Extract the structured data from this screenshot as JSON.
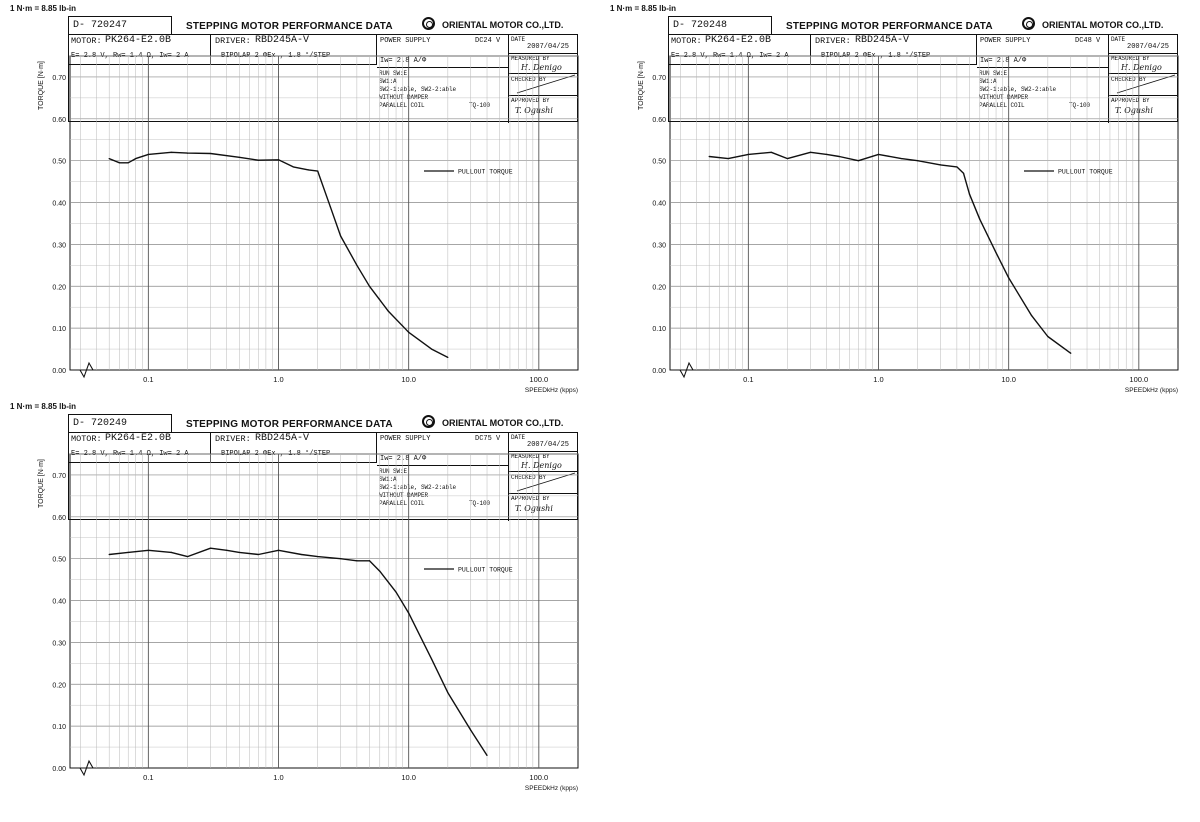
{
  "conversion_note": "1 N·m = 8.85 lb-in",
  "sheet": {
    "title": "STEPPING MOTOR PERFORMANCE DATA",
    "company": "ORIENTAL MOTOR CO.,LTD.",
    "motor_label": "MOTOR:",
    "motor": "PK264-E2.0B",
    "driver_label": "DRIVER:",
    "driver": "RBD245A-V",
    "electrical": "E= 2.8 V, Rw= 1.4  Ω, Iw= 2   A",
    "drive_mode": "BIPOLAR   2 ΦEx  ,    1.8 °/STEP",
    "power_supply_label": "POWER SUPPLY",
    "current": "Iw= 2.8  A/Φ",
    "settings": [
      "RUN SW:E",
      "SW1:A",
      "SW2-1:able, SW2-2:able",
      "WITHOUT DAMPER"
    ],
    "coil": "PARALLEL COIL",
    "tq": "TQ-100",
    "date_label": "DATE",
    "date": "2007/04/25",
    "measured_by_label": "MEASURED BY",
    "measured_sig": "H. Denigo",
    "checked_by_label": "CHECKED BY",
    "approved_by_label": "APPROVED BY",
    "approved_sig": "T. Ogushi",
    "legend": "PULLOUT  TORQUE"
  },
  "chart_data": [
    {
      "type": "line",
      "doc_id": "D- 720247",
      "supply_voltage": "DC24 V",
      "xlabel": "SPEEDkHz (kpps)",
      "ylabel": "TORQUE [N·m]",
      "x_scale": "log",
      "xlim": [
        0.025,
        200
      ],
      "ylim": [
        0,
        0.75
      ],
      "xticks": [
        "0.1",
        "1.0",
        "10.0",
        "100.0"
      ],
      "yticks": [
        "0.00",
        "0.10",
        "0.20",
        "0.30",
        "0.40",
        "0.50",
        "0.60",
        "0.70"
      ],
      "grid": true,
      "legend_position": "top-right",
      "series": [
        {
          "name": "PULLOUT  TORQUE",
          "x": [
            0.05,
            0.06,
            0.07,
            0.08,
            0.1,
            0.15,
            0.2,
            0.3,
            0.5,
            0.7,
            1.0,
            1.3,
            1.7,
            2.0,
            2.5,
            3.0,
            4.0,
            5.0,
            7.0,
            10.0,
            15.0,
            20.0
          ],
          "y": [
            0.505,
            0.495,
            0.495,
            0.505,
            0.515,
            0.52,
            0.518,
            0.517,
            0.508,
            0.501,
            0.502,
            0.485,
            0.478,
            0.475,
            0.39,
            0.32,
            0.25,
            0.2,
            0.14,
            0.09,
            0.05,
            0.03
          ]
        }
      ]
    },
    {
      "type": "line",
      "doc_id": "D- 720248",
      "supply_voltage": "DC48 V",
      "xlabel": "SPEEDkHz (kpps)",
      "ylabel": "TORQUE [N·m]",
      "x_scale": "log",
      "xlim": [
        0.025,
        200
      ],
      "ylim": [
        0,
        0.75
      ],
      "xticks": [
        "0.1",
        "1.0",
        "10.0",
        "100.0"
      ],
      "yticks": [
        "0.00",
        "0.10",
        "0.20",
        "0.30",
        "0.40",
        "0.50",
        "0.60",
        "0.70"
      ],
      "grid": true,
      "legend_position": "top-right",
      "series": [
        {
          "name": "PULLOUT  TORQUE",
          "x": [
            0.05,
            0.07,
            0.1,
            0.15,
            0.2,
            0.3,
            0.4,
            0.5,
            0.7,
            1.0,
            1.5,
            2.0,
            3.0,
            4.0,
            4.5,
            5.0,
            6.0,
            8.0,
            10.0,
            15.0,
            20.0,
            30.0
          ],
          "y": [
            0.51,
            0.505,
            0.515,
            0.52,
            0.505,
            0.52,
            0.515,
            0.51,
            0.5,
            0.515,
            0.505,
            0.5,
            0.49,
            0.485,
            0.47,
            0.42,
            0.36,
            0.28,
            0.22,
            0.13,
            0.08,
            0.04
          ]
        }
      ]
    },
    {
      "type": "line",
      "doc_id": "D- 720249",
      "supply_voltage": "DC75 V",
      "xlabel": "SPEEDkHz (kpps)",
      "ylabel": "TORQUE [N·m]",
      "x_scale": "log",
      "xlim": [
        0.025,
        200
      ],
      "ylim": [
        0,
        0.75
      ],
      "xticks": [
        "0.1",
        "1.0",
        "10.0",
        "100.0"
      ],
      "yticks": [
        "0.00",
        "0.10",
        "0.20",
        "0.30",
        "0.40",
        "0.50",
        "0.60",
        "0.70"
      ],
      "grid": true,
      "legend_position": "top-right",
      "series": [
        {
          "name": "PULLOUT  TORQUE",
          "x": [
            0.05,
            0.07,
            0.1,
            0.15,
            0.2,
            0.3,
            0.4,
            0.5,
            0.7,
            1.0,
            1.5,
            2.0,
            3.0,
            4.0,
            5.0,
            6.0,
            8.0,
            10.0,
            15.0,
            20.0,
            30.0,
            40.0
          ],
          "y": [
            0.51,
            0.515,
            0.52,
            0.515,
            0.505,
            0.525,
            0.52,
            0.515,
            0.51,
            0.52,
            0.51,
            0.505,
            0.5,
            0.495,
            0.495,
            0.47,
            0.42,
            0.37,
            0.26,
            0.18,
            0.09,
            0.03
          ]
        }
      ]
    }
  ]
}
